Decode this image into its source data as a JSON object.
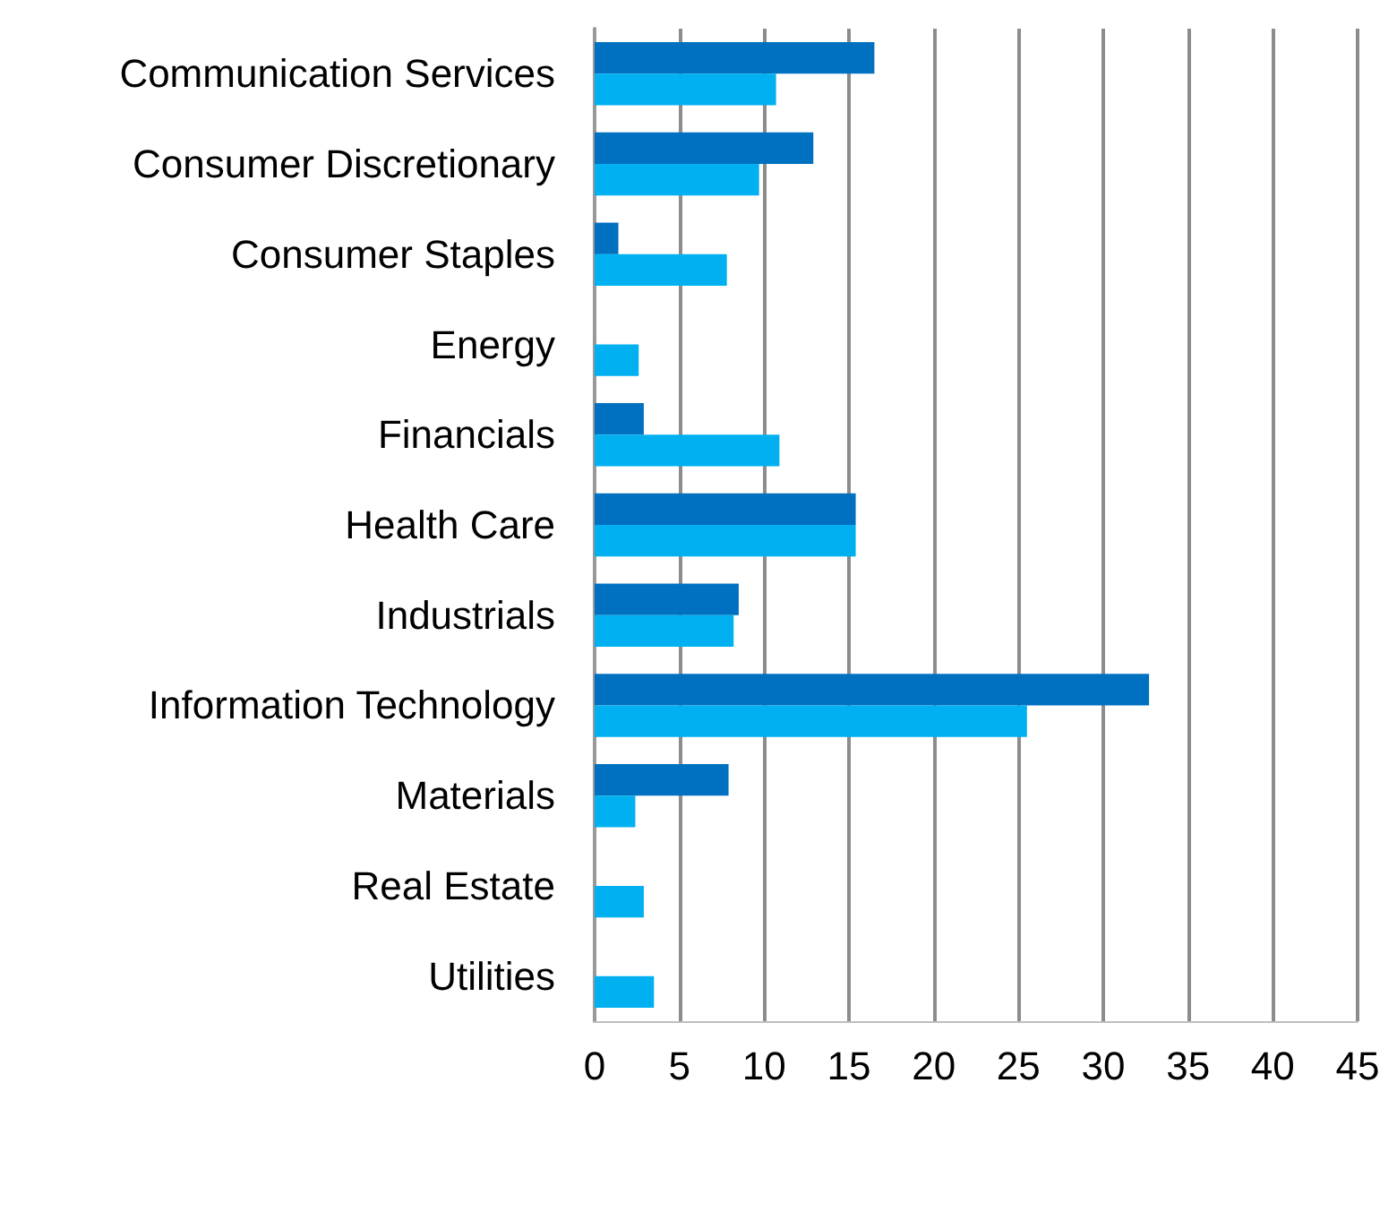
{
  "chart_data": {
    "type": "bar",
    "orientation": "horizontal",
    "categories": [
      "Communication Services",
      "Consumer Discretionary",
      "Consumer Staples",
      "Energy",
      "Financials",
      "Health Care",
      "Industrials",
      "Information Technology",
      "Materials",
      "Real Estate",
      "Utilities"
    ],
    "series": [
      {
        "color": "#0070c0",
        "values": [
          16.5,
          12.9,
          1.4,
          0,
          2.9,
          15.4,
          8.5,
          32.7,
          7.9,
          0,
          0
        ]
      },
      {
        "color": "#00b0f0",
        "values": [
          10.7,
          9.7,
          7.8,
          2.6,
          10.9,
          15.4,
          8.2,
          25.5,
          2.4,
          2.9,
          3.5
        ]
      }
    ],
    "xlim": [
      0,
      45
    ],
    "xticks": [
      0,
      5,
      10,
      15,
      20,
      25,
      30,
      35,
      40,
      45
    ],
    "grid": "x"
  }
}
